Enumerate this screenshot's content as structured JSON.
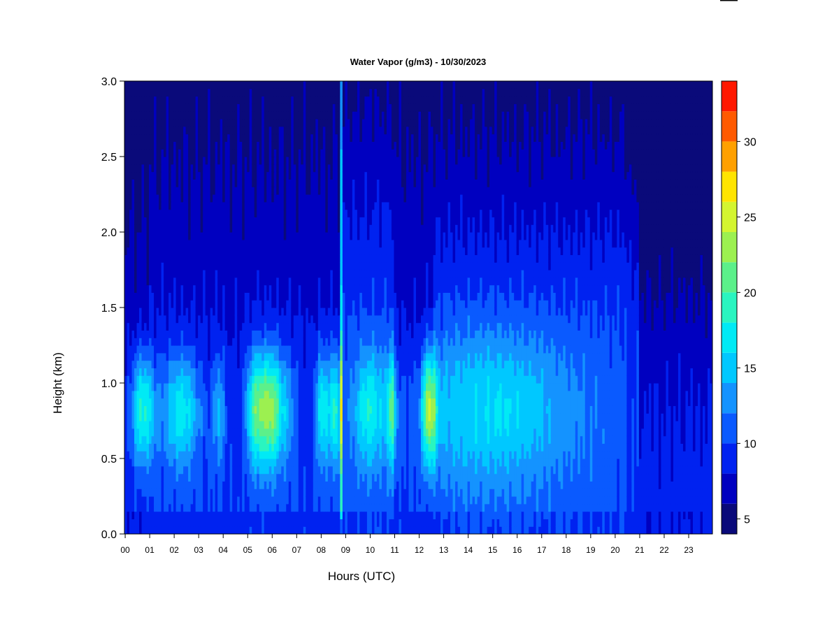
{
  "chart_data": {
    "type": "heatmap",
    "title": "Water Vapor (g/m3) - 10/30/2023",
    "xlabel": "Hours (UTC)",
    "ylabel": "Height (km)",
    "xlim": [
      0,
      24
    ],
    "ylim": [
      0,
      3.0
    ],
    "x_ticks": [
      0,
      1,
      2,
      3,
      4,
      5,
      6,
      7,
      8,
      9,
      10,
      11,
      12,
      13,
      14,
      15,
      16,
      17,
      18,
      19,
      20,
      21,
      22,
      23
    ],
    "x_tick_labels": [
      "00",
      "01",
      "02",
      "03",
      "04",
      "05",
      "06",
      "07",
      "08",
      "09",
      "10",
      "11",
      "12",
      "13",
      "14",
      "15",
      "16",
      "17",
      "18",
      "19",
      "20",
      "21",
      "22",
      "23"
    ],
    "y_ticks": [
      0.0,
      0.5,
      1.0,
      1.5,
      2.0,
      2.5,
      3.0
    ],
    "y_tick_labels": [
      "0.0",
      "0.5",
      "1.0",
      "1.5",
      "2.0",
      "2.5",
      "3.0"
    ],
    "colorbar": {
      "range": [
        4,
        34
      ],
      "ticks": [
        5,
        10,
        15,
        20,
        25,
        30
      ],
      "tick_labels": [
        "5",
        "10",
        "15",
        "20",
        "25",
        "30"
      ],
      "levels": [
        4,
        6,
        8,
        10,
        12,
        14,
        16,
        18,
        20,
        22,
        24,
        26,
        28,
        30,
        32,
        34
      ],
      "colors": [
        "#0a0a7a",
        "#0000c0",
        "#0022f0",
        "#0a5aff",
        "#1493ff",
        "#00c8ff",
        "#00eaf5",
        "#2af5c0",
        "#5cf08a",
        "#9cf050",
        "#d4f530",
        "#ffe400",
        "#ffa000",
        "#ff5a00",
        "#ff1800",
        "#c80000",
        "#7a0000"
      ]
    },
    "grid": false,
    "legend": "colorbar-right"
  }
}
